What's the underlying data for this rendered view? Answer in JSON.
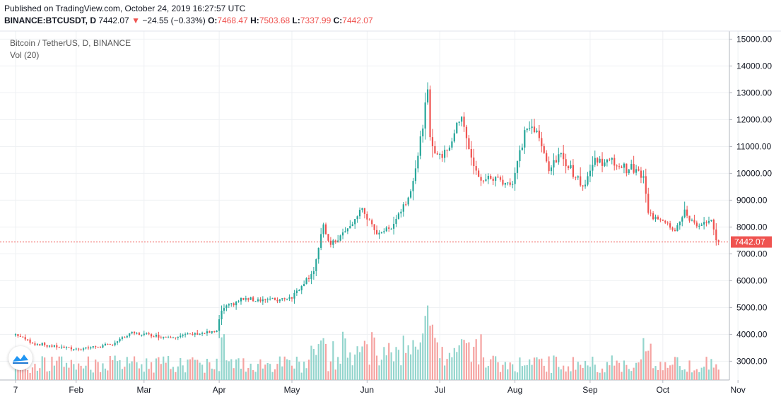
{
  "header": {
    "published": "Published on TradingView.com, October 24, 2019 16:27:57 UTC",
    "symbol": "BINANCE:BTCUSDT, D",
    "last": "7442.07",
    "change": "−24.55 (−0.33%)",
    "o_label": "O:",
    "o_value": "7468.47",
    "h_label": "H:",
    "h_value": "7503.68",
    "l_label": "L:",
    "l_value": "7337.99",
    "c_label": "C:",
    "c_value": "7442.07"
  },
  "legend": {
    "title": "Bitcoin / TetherUS, D, BINANCE",
    "volume": "Vol (20)"
  },
  "colors": {
    "up": "#26a69a",
    "down": "#ef5350",
    "up_volume": "#93d5cd",
    "down_volume": "#f5a3a1",
    "grid": "#eef0f3",
    "axis": "#b2b5be",
    "price_line": "#ef5350"
  },
  "chart_data": {
    "type": "candlestick",
    "symbol": "BTCUSDT",
    "interval": "D",
    "ylim": [
      2300,
      15300
    ],
    "y_ticks": [
      "15000.00",
      "14000.00",
      "13000.00",
      "12000.00",
      "11000.00",
      "10000.00",
      "9000.00",
      "8000.00",
      "7000.00",
      "6000.00",
      "5000.00",
      "4000.00",
      "3000.00"
    ],
    "x_ticks": [
      "7",
      "Feb",
      "Mar",
      "Apr",
      "May",
      "Jun",
      "Jul",
      "Aug",
      "Sep",
      "Oct",
      "Nov"
    ],
    "last_price": 7442.07,
    "last_price_label": "7442.07",
    "volume_indicator": "Vol (20)",
    "close_anchors": [
      {
        "date": "2019-01-07",
        "close": 4000
      },
      {
        "date": "2019-01-15",
        "close": 3650
      },
      {
        "date": "2019-02-01",
        "close": 3450
      },
      {
        "date": "2019-02-15",
        "close": 3600
      },
      {
        "date": "2019-02-24",
        "close": 4050
      },
      {
        "date": "2019-03-10",
        "close": 3900
      },
      {
        "date": "2019-03-31",
        "close": 4100
      },
      {
        "date": "2019-04-02",
        "close": 4900
      },
      {
        "date": "2019-04-10",
        "close": 5300
      },
      {
        "date": "2019-04-25",
        "close": 5300
      },
      {
        "date": "2019-05-01",
        "close": 5400
      },
      {
        "date": "2019-05-10",
        "close": 6400
      },
      {
        "date": "2019-05-14",
        "close": 8000
      },
      {
        "date": "2019-05-17",
        "close": 7300
      },
      {
        "date": "2019-05-25",
        "close": 8000
      },
      {
        "date": "2019-05-30",
        "close": 8700
      },
      {
        "date": "2019-06-04",
        "close": 7800
      },
      {
        "date": "2019-06-10",
        "close": 7900
      },
      {
        "date": "2019-06-18",
        "close": 9100
      },
      {
        "date": "2019-06-22",
        "close": 10600
      },
      {
        "date": "2019-06-26",
        "close": 13000
      },
      {
        "date": "2019-06-27",
        "close": 11200
      },
      {
        "date": "2019-07-01",
        "close": 10600
      },
      {
        "date": "2019-07-05",
        "close": 11000
      },
      {
        "date": "2019-07-10",
        "close": 12200
      },
      {
        "date": "2019-07-14",
        "close": 10500
      },
      {
        "date": "2019-07-17",
        "close": 9800
      },
      {
        "date": "2019-07-25",
        "close": 9800
      },
      {
        "date": "2019-07-31",
        "close": 9600
      },
      {
        "date": "2019-08-03",
        "close": 10800
      },
      {
        "date": "2019-08-06",
        "close": 11800
      },
      {
        "date": "2019-08-10",
        "close": 11500
      },
      {
        "date": "2019-08-15",
        "close": 10200
      },
      {
        "date": "2019-08-20",
        "close": 10700
      },
      {
        "date": "2019-08-29",
        "close": 9500
      },
      {
        "date": "2019-09-03",
        "close": 10500
      },
      {
        "date": "2019-09-10",
        "close": 10400
      },
      {
        "date": "2019-09-20",
        "close": 10100
      },
      {
        "date": "2019-09-23",
        "close": 9800
      },
      {
        "date": "2019-09-25",
        "close": 8500
      },
      {
        "date": "2019-10-01",
        "close": 8300
      },
      {
        "date": "2019-10-06",
        "close": 7900
      },
      {
        "date": "2019-10-10",
        "close": 8500
      },
      {
        "date": "2019-10-16",
        "close": 8000
      },
      {
        "date": "2019-10-21",
        "close": 8200
      },
      {
        "date": "2019-10-23",
        "close": 7450
      },
      {
        "date": "2019-10-24",
        "close": 7442
      }
    ]
  }
}
